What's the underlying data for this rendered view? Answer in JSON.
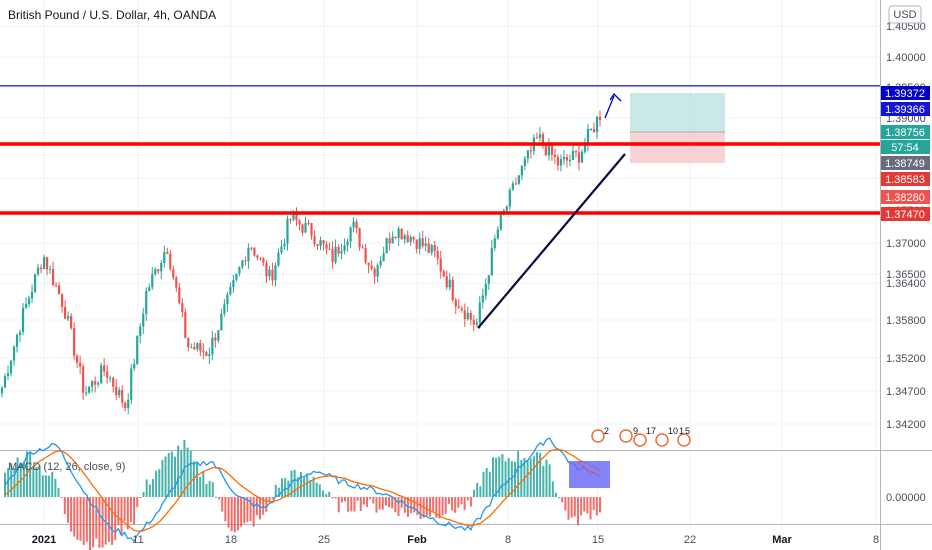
{
  "header": {
    "title": "British Pound / U.S. Dollar, 4h, OANDA",
    "currency": "USD"
  },
  "colors": {
    "up": "#26a69a",
    "down": "#ef5350",
    "macd_line": "#2196f3",
    "signal_line": "#ff6d00",
    "hist_up": "#26a69a",
    "hist_down": "#ef5350",
    "resistance": "#ff0000",
    "target_line": "#0000c8",
    "trendline": "#0a0a40",
    "profit_zone": "#b2dfdb",
    "loss_zone": "#f8c8c8",
    "macd_box": "#6f6ff5"
  },
  "price_scale": {
    "ticks": [
      "1.40500",
      "1.40000",
      "1.39500",
      "1.39000",
      "1.38500",
      "1.38000",
      "1.37500",
      "1.37000",
      "1.36500",
      "1.36400",
      "1.35800",
      "1.35200",
      "1.34700",
      "1.34200"
    ],
    "labels": [
      {
        "text": "1.39372",
        "color": "#0000c8"
      },
      {
        "text": "1.39366",
        "color": "#1212d8"
      },
      {
        "text": "1.38756",
        "color": "#26a69a"
      },
      {
        "text": "57:54",
        "color": "#26a69a"
      },
      {
        "text": "1.38749",
        "color": "#6b6b80"
      },
      {
        "text": "1.38583",
        "color": "#e53935"
      },
      {
        "text": "1.38280",
        "color": "#ef5350"
      },
      {
        "text": "1.37470",
        "color": "#e53935"
      }
    ]
  },
  "time_axis": {
    "labels": [
      "2021",
      "11",
      "18",
      "25",
      "Feb",
      "8",
      "15",
      "22",
      "Mar",
      "8"
    ]
  },
  "events": [
    "2",
    "9",
    "17",
    "10",
    "1",
    "5"
  ],
  "macd": {
    "label": "MACD (12, 26, close, 9)",
    "ticks": [
      "0.00000"
    ]
  },
  "chart_data": {
    "type": "candlestick",
    "title": "British Pound / U.S. Dollar, 4h, OANDA",
    "ylim": [
      1.3395,
      1.4065
    ],
    "key_levels": {
      "target": 1.39372,
      "resistance_upper": 1.38583,
      "resistance_lower": 1.3747
    },
    "trendline": [
      [
        1.3569,
        1.3863
      ]
    ],
    "anchor_prices": [
      1.3488,
      1.3595,
      1.3685,
      1.361,
      1.348,
      1.3515,
      1.346,
      1.363,
      1.37,
      1.355,
      1.354,
      1.362,
      1.3705,
      1.365,
      1.374,
      1.372,
      1.368,
      1.373,
      1.366,
      1.3725,
      1.371,
      1.3685,
      1.362,
      1.358,
      1.372,
      1.38,
      1.386,
      1.382,
      1.3835,
      1.3895
    ],
    "macd_anchors": [
      0.0008,
      0.003,
      0.0035,
      0.0005,
      -0.002,
      -0.0028,
      -0.0008,
      0.002,
      0.0024,
      0.0,
      -0.0008,
      0.0008,
      0.0018,
      0.001,
      0.0006,
      0.0,
      -0.001,
      -0.0018,
      -0.0022,
      0.0002,
      0.0022,
      0.004,
      0.002,
      0.0015
    ]
  }
}
